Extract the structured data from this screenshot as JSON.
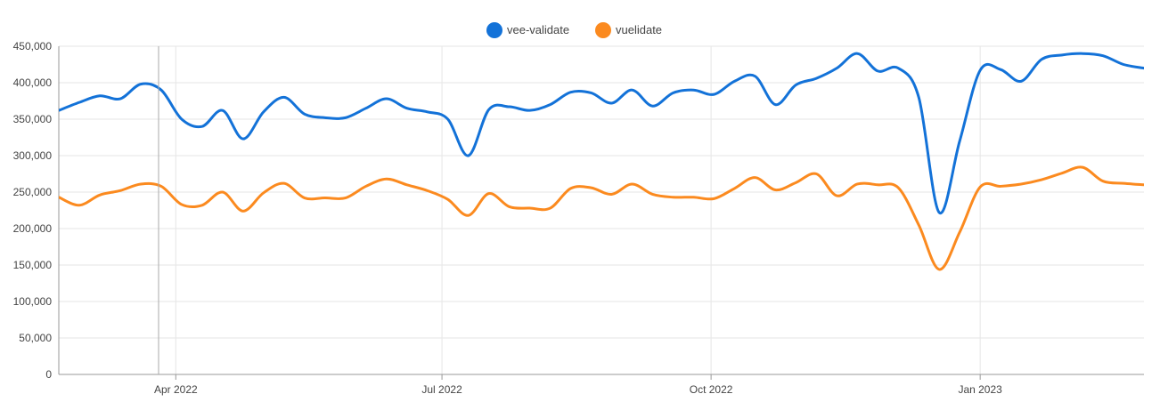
{
  "chart_data": {
    "type": "line",
    "title": "",
    "xlabel": "",
    "ylabel": "",
    "ylim": [
      0,
      450000
    ],
    "y_ticks": [
      0,
      50000,
      100000,
      150000,
      200000,
      250000,
      300000,
      350000,
      400000,
      450000
    ],
    "y_tick_labels": [
      "0",
      "50,000",
      "100,000",
      "150,000",
      "200,000",
      "250,000",
      "300,000",
      "350,000",
      "400,000",
      "450,000"
    ],
    "x_range": [
      "2022-02-20",
      "2023-02-26"
    ],
    "x_ticks": [
      "2022-04-01",
      "2022-07-01",
      "2022-10-01",
      "2023-01-01"
    ],
    "x_tick_labels": [
      "Apr 2022",
      "Jul 2022",
      "Oct 2022",
      "Jan 2023"
    ],
    "grid": true,
    "legend_position": "top-center",
    "dates": [
      "2022-02-20",
      "2022-02-27",
      "2022-03-06",
      "2022-03-13",
      "2022-03-20",
      "2022-03-27",
      "2022-04-03",
      "2022-04-10",
      "2022-04-17",
      "2022-04-24",
      "2022-05-01",
      "2022-05-08",
      "2022-05-15",
      "2022-05-22",
      "2022-05-29",
      "2022-06-05",
      "2022-06-12",
      "2022-06-19",
      "2022-06-26",
      "2022-07-03",
      "2022-07-10",
      "2022-07-17",
      "2022-07-24",
      "2022-07-31",
      "2022-08-07",
      "2022-08-14",
      "2022-08-21",
      "2022-08-28",
      "2022-09-04",
      "2022-09-11",
      "2022-09-18",
      "2022-09-25",
      "2022-10-02",
      "2022-10-09",
      "2022-10-16",
      "2022-10-23",
      "2022-10-30",
      "2022-11-06",
      "2022-11-13",
      "2022-11-20",
      "2022-11-27",
      "2022-12-04",
      "2022-12-11",
      "2022-12-18",
      "2022-12-25",
      "2023-01-01",
      "2023-01-08",
      "2023-01-15",
      "2023-01-22",
      "2023-01-29",
      "2023-02-05",
      "2023-02-12",
      "2023-02-19",
      "2023-02-26"
    ],
    "series": [
      {
        "name": "vee-validate",
        "color": "#1372d8",
        "values": [
          362000,
          373000,
          382000,
          378000,
          398000,
          390000,
          350000,
          340000,
          362000,
          323000,
          360000,
          380000,
          357000,
          352000,
          352000,
          365000,
          378000,
          365000,
          360000,
          350000,
          300000,
          363000,
          367000,
          362000,
          370000,
          387000,
          386000,
          372000,
          390000,
          368000,
          386000,
          390000,
          384000,
          402000,
          409000,
          370000,
          397000,
          406000,
          420000,
          440000,
          416000,
          420000,
          380000,
          222000,
          320000,
          417000,
          418000,
          402000,
          432000,
          438000,
          440000,
          437000,
          425000,
          420000
        ]
      },
      {
        "name": "vuelidate",
        "color": "#fb8a1f",
        "values": [
          243000,
          232000,
          246000,
          252000,
          261000,
          258000,
          233000,
          232000,
          250000,
          224000,
          249000,
          262000,
          242000,
          242000,
          242000,
          258000,
          268000,
          260000,
          252000,
          240000,
          218000,
          248000,
          230000,
          228000,
          228000,
          255000,
          256000,
          247000,
          261000,
          247000,
          243000,
          243000,
          241000,
          255000,
          270000,
          253000,
          263000,
          275000,
          245000,
          261000,
          260000,
          256000,
          205000,
          144000,
          195000,
          257000,
          258000,
          261000,
          267000,
          276000,
          284000,
          265000,
          262000,
          260000
        ]
      }
    ]
  }
}
